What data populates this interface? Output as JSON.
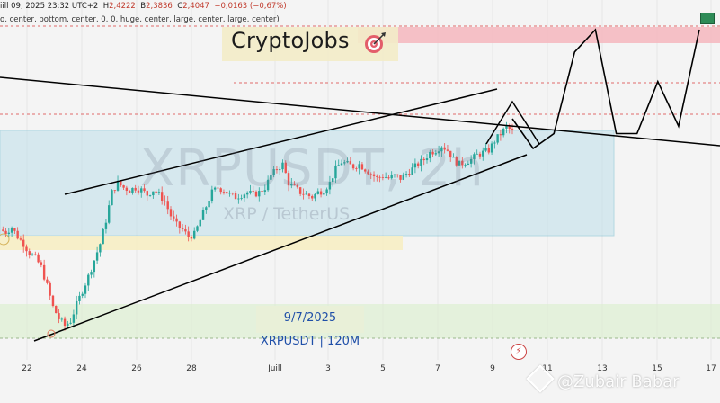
{
  "header": {
    "date_line": "iill 09, 2025 23:32 UTC+2",
    "ohlc": {
      "h_label": "H",
      "h_value": "2,4222",
      "b_label": "B",
      "b_value": "2,3836",
      "c_label": "C",
      "c_value": "2,4047",
      "change": "−0,0163 (−0,67%)"
    },
    "settings_line": "o, center, bottom, center, 0, 0, huge, center, large, center, large, center)"
  },
  "brand": {
    "name": "CryptoJobs",
    "logo_icon": "target-icon"
  },
  "watermark": {
    "symbol": "XRPUSDT, 2h",
    "description": "XRP / TetherUS"
  },
  "annotation": {
    "date": "9/7/2025",
    "pair": "XRPUSDT | 120M"
  },
  "credit": {
    "icon": "binance-square-icon",
    "text": "@Zubair Babar"
  },
  "colors": {
    "up_candle": "#26a69a",
    "down_candle": "#ef5350",
    "resistance_zone": "#f4b6bd",
    "range_box": "#bfe0ea",
    "support_zone_yellow": "#f7eec4",
    "support_zone_green": "#dcefd0",
    "trendline": "#000000",
    "brand_bg": "#f3ecc8"
  },
  "chart_data": {
    "type": "candlestick",
    "timeframe": "2h",
    "symbol": "XRPUSDT",
    "x_tick_labels": [
      "22",
      "24",
      "26",
      "28",
      "Juill",
      "3",
      "5",
      "7",
      "9",
      "11",
      "13",
      "15",
      "17"
    ],
    "candles_close_path": [
      [
        0,
        0.46
      ],
      [
        2,
        0.45
      ],
      [
        4,
        0.47
      ],
      [
        6,
        0.43
      ],
      [
        8,
        0.4
      ],
      [
        10,
        0.36
      ],
      [
        12,
        0.34
      ],
      [
        14,
        0.3
      ],
      [
        16,
        0.22
      ],
      [
        18,
        0.13
      ],
      [
        20,
        0.08
      ],
      [
        22,
        0.05
      ],
      [
        24,
        0.07
      ],
      [
        26,
        0.14
      ],
      [
        28,
        0.2
      ],
      [
        30,
        0.26
      ],
      [
        32,
        0.33
      ],
      [
        34,
        0.4
      ],
      [
        36,
        0.5
      ],
      [
        38,
        0.62
      ],
      [
        40,
        0.66
      ],
      [
        42,
        0.64
      ],
      [
        44,
        0.63
      ],
      [
        46,
        0.64
      ],
      [
        48,
        0.63
      ],
      [
        50,
        0.61
      ],
      [
        52,
        0.63
      ],
      [
        54,
        0.61
      ],
      [
        56,
        0.58
      ],
      [
        58,
        0.52
      ],
      [
        60,
        0.48
      ],
      [
        62,
        0.46
      ],
      [
        64,
        0.43
      ],
      [
        66,
        0.44
      ],
      [
        68,
        0.5
      ],
      [
        70,
        0.56
      ],
      [
        72,
        0.62
      ],
      [
        74,
        0.64
      ],
      [
        76,
        0.63
      ],
      [
        78,
        0.61
      ],
      [
        80,
        0.6
      ],
      [
        82,
        0.61
      ],
      [
        84,
        0.62
      ],
      [
        86,
        0.61
      ],
      [
        88,
        0.62
      ],
      [
        90,
        0.64
      ],
      [
        92,
        0.69
      ],
      [
        94,
        0.72
      ],
      [
        96,
        0.74
      ],
      [
        98,
        0.66
      ],
      [
        100,
        0.64
      ],
      [
        102,
        0.62
      ],
      [
        104,
        0.61
      ],
      [
        106,
        0.6
      ],
      [
        108,
        0.62
      ],
      [
        110,
        0.63
      ],
      [
        112,
        0.66
      ],
      [
        114,
        0.72
      ],
      [
        116,
        0.75
      ],
      [
        118,
        0.74
      ],
      [
        120,
        0.73
      ],
      [
        122,
        0.74
      ],
      [
        124,
        0.72
      ],
      [
        126,
        0.7
      ],
      [
        128,
        0.68
      ],
      [
        130,
        0.69
      ],
      [
        132,
        0.68
      ],
      [
        134,
        0.69
      ],
      [
        136,
        0.68
      ],
      [
        138,
        0.7
      ],
      [
        140,
        0.72
      ],
      [
        142,
        0.74
      ],
      [
        144,
        0.76
      ],
      [
        146,
        0.79
      ],
      [
        148,
        0.8
      ],
      [
        150,
        0.82
      ],
      [
        152,
        0.8
      ],
      [
        154,
        0.76
      ],
      [
        156,
        0.74
      ],
      [
        158,
        0.75
      ],
      [
        160,
        0.76
      ],
      [
        162,
        0.78
      ],
      [
        164,
        0.79
      ],
      [
        166,
        0.8
      ],
      [
        168,
        0.84
      ],
      [
        170,
        0.87
      ],
      [
        172,
        0.9
      ],
      [
        174,
        0.88
      ]
    ],
    "projection_path": [
      [
        0,
        0.88
      ],
      [
        1,
        0.84
      ],
      [
        2,
        0.86
      ],
      [
        3,
        0.97
      ],
      [
        4,
        1.0
      ],
      [
        5,
        0.86
      ],
      [
        6,
        0.86
      ],
      [
        7,
        0.93
      ],
      [
        8,
        0.87
      ],
      [
        9,
        1.0
      ]
    ],
    "zones": [
      "resistance",
      "range",
      "support_yellow",
      "support_green"
    ],
    "trendlines": [
      "descending_resistance",
      "rising_channel_upper",
      "rising_channel_lower"
    ],
    "grid": true,
    "xlabel": "",
    "ylabel": ""
  }
}
